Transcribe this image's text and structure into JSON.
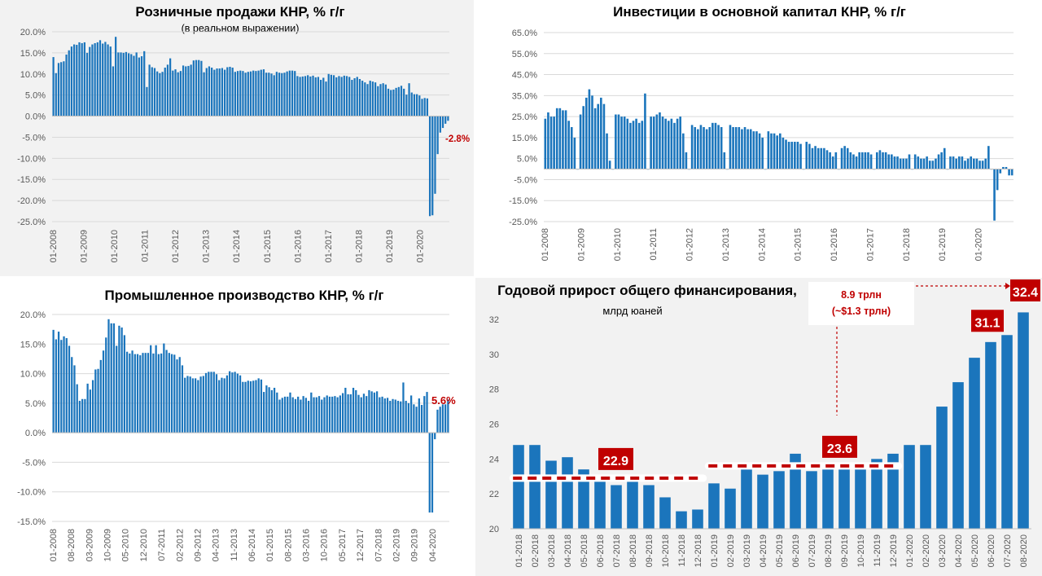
{
  "colors": {
    "bar": "#1b75bc",
    "accent": "#c00000",
    "axis": "#bfbfbf",
    "grid": "#d9d9d9",
    "text": "#595959"
  },
  "chart_data": [
    {
      "id": "retail",
      "type": "bar",
      "title": "Розничные продажи КНР, % г/г",
      "subtitle": "(в реальном выражении)",
      "ylim": [
        -25,
        20
      ],
      "yticks": [
        20,
        15,
        10,
        5,
        0,
        -5,
        -10,
        -15,
        -20,
        -25
      ],
      "tick_format": "pct1",
      "x_labels": [
        "01-2008",
        "01-2009",
        "01-2010",
        "01-2011",
        "01-2012",
        "01-2013",
        "01-2014",
        "01-2015",
        "01-2016",
        "01-2017",
        "01-2018",
        "01-2019",
        "01-2020"
      ],
      "annotation": "-2.8%",
      "values": [
        14.0,
        10.2,
        12.6,
        12.8,
        13.0,
        14.6,
        15.6,
        16.5,
        17.0,
        16.9,
        17.5,
        17.3,
        17.5,
        15.0,
        16.4,
        17.0,
        17.3,
        17.5,
        18.0,
        17.2,
        17.6,
        17.0,
        16.5,
        11.8,
        18.8,
        15.1,
        15.1,
        15.0,
        15.2,
        14.9,
        14.7,
        14.3,
        15.1,
        13.9,
        14.2,
        15.4,
        6.9,
        12.2,
        11.6,
        11.4,
        10.6,
        10.2,
        10.5,
        11.5,
        12.2,
        13.7,
        10.8,
        11.1,
        10.4,
        10.7,
        12.0,
        11.8,
        11.9,
        12.2,
        13.2,
        13.3,
        13.3,
        13.1,
        10.4,
        11.4,
        11.8,
        11.5,
        11.0,
        11.3,
        11.3,
        11.4,
        11.0,
        11.6,
        11.7,
        11.5,
        10.5,
        10.7,
        10.8,
        10.7,
        10.3,
        10.5,
        10.6,
        10.8,
        10.7,
        10.8,
        11.0,
        11.1,
        10.3,
        10.3,
        10.1,
        9.7,
        10.5,
        10.3,
        10.2,
        10.3,
        10.6,
        10.8,
        10.8,
        10.7,
        9.5,
        9.3,
        9.4,
        9.5,
        9.7,
        9.4,
        9.6,
        9.2,
        9.3,
        8.6,
        9.1,
        8.2,
        10.0,
        9.8,
        9.7,
        9.2,
        9.5,
        9.3,
        9.6,
        9.5,
        9.3,
        8.6,
        9.0,
        9.3,
        8.8,
        8.4,
        8.0,
        7.6,
        8.4,
        8.2,
        8.0,
        7.1,
        7.6,
        7.8,
        7.5,
        6.5,
        6.2,
        6.3,
        6.7,
        6.9,
        7.2,
        6.5,
        5.1,
        7.8,
        5.6,
        5.2,
        5.2,
        4.9,
        4.1,
        4.3,
        4.2,
        -23.7,
        -23.5,
        -18.4,
        -9.0,
        -3.9,
        -2.8,
        -1.8,
        -1.1
      ]
    },
    {
      "id": "invest",
      "type": "bar",
      "title": "Инвестиции в основной капитал КНР, % г/г",
      "ylim": [
        -25,
        65
      ],
      "yticks": [
        65,
        55,
        45,
        35,
        25,
        15,
        5,
        -5,
        -15,
        -25
      ],
      "tick_format": "pct1",
      "x_labels": [
        "01-2008",
        "01-2009",
        "01-2010",
        "01-2011",
        "01-2012",
        "01-2013",
        "01-2014",
        "01-2015",
        "01-2016",
        "01-2017",
        "01-2018",
        "01-2019",
        "01-2020"
      ],
      "values": [
        24,
        27,
        25,
        25,
        29,
        29,
        28,
        28,
        23,
        20,
        15,
        0,
        26,
        30,
        34,
        38,
        35,
        29,
        31,
        34,
        31,
        17,
        4,
        0,
        26,
        26,
        25,
        25,
        24,
        22,
        23,
        24,
        22,
        23,
        36,
        0,
        25,
        25,
        26,
        27,
        25,
        24,
        23,
        24,
        22,
        24,
        25,
        17,
        8,
        0,
        21,
        20,
        19,
        21,
        20,
        19,
        20,
        22,
        22,
        21,
        20,
        8,
        0,
        21,
        20,
        20,
        20,
        19,
        20,
        19,
        19,
        18,
        18,
        17,
        15,
        0,
        18,
        17,
        17,
        16,
        17,
        15,
        14,
        13,
        13,
        13,
        13,
        12,
        0,
        13,
        12,
        10,
        11,
        10,
        10,
        10,
        9,
        8,
        6,
        8,
        0,
        10,
        11,
        10,
        8,
        7,
        6,
        8,
        8,
        8,
        8,
        7,
        0,
        8,
        9,
        8,
        8,
        7,
        7,
        6,
        6,
        5,
        5,
        5,
        7,
        0,
        7,
        6,
        5,
        5,
        6,
        4,
        4,
        5,
        7,
        8,
        10,
        0,
        6,
        6,
        5,
        6,
        6,
        4,
        5,
        6,
        5,
        5,
        4,
        4,
        5,
        11,
        0,
        -24.5,
        -10,
        -2,
        1,
        1,
        -3,
        -3
      ]
    },
    {
      "id": "industrial",
      "type": "bar",
      "title": "Промышленное производство КНР, % г/г",
      "ylim": [
        -15,
        20
      ],
      "yticks": [
        20,
        15,
        10,
        5,
        0,
        -5,
        -10,
        -15
      ],
      "tick_format": "pct1",
      "x_labels": [
        "01-2008",
        "08-2008",
        "03-2009",
        "10-2009",
        "05-2010",
        "12-2010",
        "07-2011",
        "02-2012",
        "09-2012",
        "04-2013",
        "11-2013",
        "06-2014",
        "01-2015",
        "08-2015",
        "03-2016",
        "10-2016",
        "05-2017",
        "12-2017",
        "07-2018",
        "02-2019",
        "09-2019",
        "04-2020"
      ],
      "annotation": "5.6%",
      "values": [
        17.4,
        15.8,
        17.1,
        15.7,
        16.3,
        16.0,
        14.7,
        12.8,
        11.4,
        8.2,
        5.4,
        5.7,
        5.7,
        8.3,
        7.3,
        8.9,
        10.7,
        10.8,
        12.3,
        13.9,
        16.1,
        19.2,
        18.5,
        18.5,
        14.7,
        18.1,
        17.8,
        16.5,
        13.7,
        13.4,
        13.9,
        13.3,
        13.3,
        13.1,
        13.5,
        13.5,
        13.5,
        14.8,
        13.4,
        14.8,
        13.3,
        13.4,
        15.1,
        14.0,
        13.5,
        13.3,
        13.2,
        12.4,
        12.8,
        11.4,
        9.3,
        9.6,
        9.5,
        9.2,
        9.2,
        8.9,
        9.5,
        9.6,
        10.1,
        10.3,
        10.3,
        10.3,
        9.9,
        8.9,
        9.3,
        9.2,
        9.7,
        10.4,
        10.2,
        10.3,
        10.0,
        9.7,
        8.6,
        8.6,
        8.8,
        8.7,
        8.8,
        8.9,
        9.2,
        9.0,
        6.9,
        8.0,
        7.7,
        7.2,
        7.6,
        6.8,
        5.6,
        5.9,
        6.1,
        6.1,
        6.8,
        6.0,
        5.7,
        6.1,
        5.6,
        6.2,
        5.9,
        5.4,
        6.8,
        6.0,
        6.0,
        6.2,
        5.6,
        6.0,
        6.3,
        6.1,
        6.1,
        6.2,
        6.0,
        6.3,
        6.7,
        7.6,
        6.5,
        6.5,
        7.6,
        7.2,
        6.4,
        6.0,
        6.6,
        6.2,
        7.2,
        7.0,
        6.8,
        7.0,
        6.0,
        6.1,
        5.8,
        5.9,
        5.4,
        5.7,
        5.6,
        5.4,
        5.3,
        8.5,
        5.4,
        5.0,
        6.3,
        4.8,
        4.4,
        5.8,
        4.7,
        6.2,
        6.9,
        -13.5,
        -13.5,
        -1.1,
        3.9,
        4.4,
        4.8,
        4.8,
        5.6
      ]
    },
    {
      "id": "financing",
      "type": "bar",
      "title": "Годовой прирост общего финансирования,",
      "subtitle": "млрд юаней",
      "ylim": [
        20,
        32
      ],
      "yticks": [
        20,
        22,
        24,
        26,
        28,
        30,
        32
      ],
      "tick_format": "int",
      "categories": [
        "01-2018",
        "02-2018",
        "03-2018",
        "04-2018",
        "05-2018",
        "06-2018",
        "07-2018",
        "08-2018",
        "09-2018",
        "10-2018",
        "11-2018",
        "12-2018",
        "01-2019",
        "02-2019",
        "03-2019",
        "04-2019",
        "05-2019",
        "06-2019",
        "07-2019",
        "08-2019",
        "09-2019",
        "10-2019",
        "11-2019",
        "12-2019",
        "01-2020",
        "02-2020",
        "03-2020",
        "04-2020",
        "05-2020",
        "06-2020",
        "07-2020",
        "08-2020"
      ],
      "values": [
        24.8,
        24.8,
        23.9,
        24.1,
        23.4,
        22.9,
        22.5,
        22.7,
        22.5,
        21.8,
        21.0,
        21.1,
        22.6,
        22.3,
        23.6,
        23.1,
        23.3,
        24.3,
        23.3,
        23.6,
        23.6,
        23.6,
        24.0,
        24.3,
        24.8,
        24.8,
        27.0,
        28.4,
        29.8,
        30.7,
        31.1,
        32.4
      ],
      "avg_2018": 22.9,
      "avg_2019": 23.6,
      "label_2018": "22.9",
      "label_2019": "23.6",
      "label_jul": "31.1",
      "label_aug": "32.4",
      "callout_line1": "8.9 трлн",
      "callout_line2": "(~$1.3 трлн)"
    }
  ]
}
